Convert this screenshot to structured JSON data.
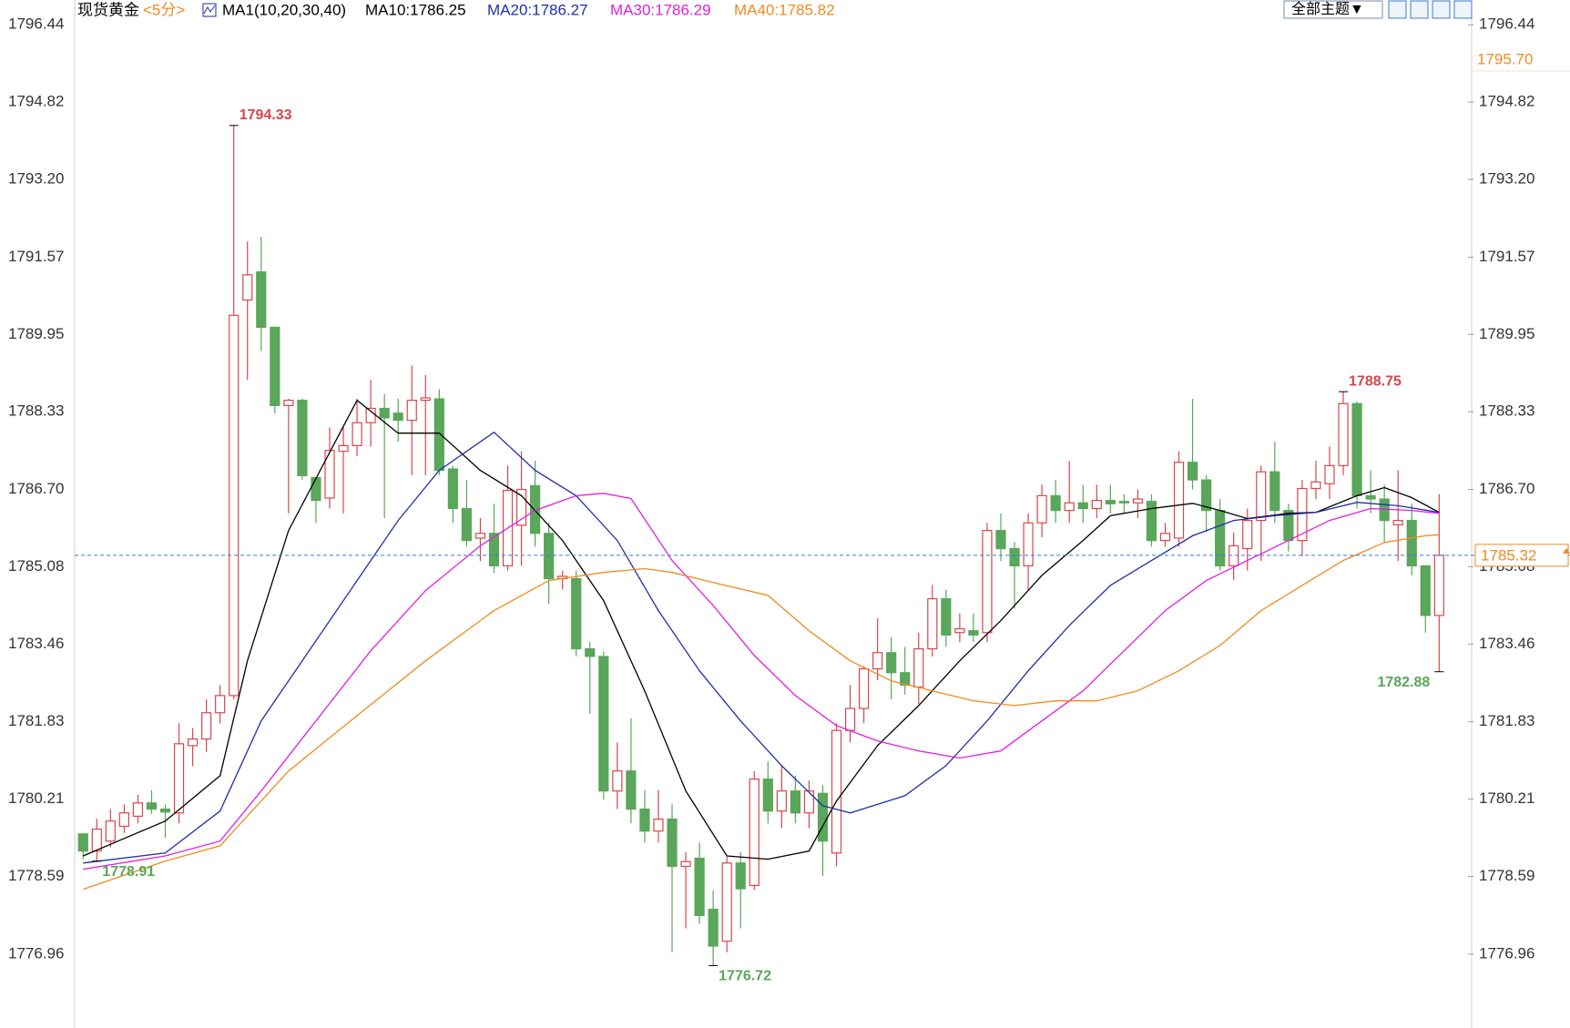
{
  "chart_data": {
    "type": "candlestick",
    "title": "现货黄金",
    "period": "<5分>",
    "indicator": "MA1(10,20,30,40)",
    "toolbar": {
      "theme_button": "全部主题▼"
    },
    "up_color": "#d9464b",
    "down_color": "#5aa65a",
    "open": [
      1779.48,
      1779.12,
      1779.33,
      1779.64,
      1779.85,
      1780.13,
      1780.0,
      1779.92,
      1781.33,
      1781.47,
      1782.02,
      1782.38,
      1790.67,
      1791.26,
      1790.1,
      1788.46,
      1788.57,
      1786.95,
      1786.52,
      1787.5,
      1787.62,
      1788.1,
      1788.4,
      1788.3,
      1788.15,
      1788.57,
      1788.6,
      1787.13,
      1786.3,
      1785.68,
      1785.78,
      1785.1,
      1785.95,
      1786.78,
      1785.78,
      1784.83,
      1784.83,
      1783.36,
      1783.2,
      1780.38,
      1780.8,
      1780.0,
      1779.54,
      1779.79,
      1778.8,
      1778.97,
      1777.9,
      1777.23,
      1778.87,
      1778.4,
      1780.63,
      1779.96,
      1780.38,
      1779.92,
      1780.33,
      1779.08,
      1781.65,
      1782.11,
      1782.94,
      1783.28,
      1782.86,
      1782.56,
      1783.36,
      1784.41,
      1783.7,
      1783.74,
      1783.7,
      1785.84,
      1785.46,
      1785.1,
      1786.0,
      1786.57,
      1786.26,
      1786.42,
      1786.3,
      1786.47,
      1786.45,
      1786.42,
      1786.45,
      1785.63,
      1785.68,
      1787.27,
      1786.9,
      1786.26,
      1785.1,
      1785.46,
      1786.05,
      1787.07,
      1786.26,
      1785.63,
      1786.72,
      1786.82,
      1787.2,
      1788.5,
      1786.57,
      1786.5,
      1785.96,
      1786.05,
      1785.1,
      1784.06
    ],
    "high": [
      1779.5,
      1779.8,
      1780.0,
      1780.1,
      1780.3,
      1780.4,
      1780.1,
      1781.8,
      1781.7,
      1782.3,
      1782.6,
      1794.33,
      1791.9,
      1792.0,
      1790.1,
      1788.6,
      1788.6,
      1786.9,
      1788.0,
      1788.0,
      1788.6,
      1789.0,
      1788.7,
      1788.6,
      1789.3,
      1789.1,
      1788.8,
      1787.2,
      1786.9,
      1786.1,
      1786.4,
      1787.2,
      1787.5,
      1787.3,
      1786.0,
      1785.0,
      1785.0,
      1783.5,
      1783.3,
      1781.4,
      1781.9,
      1780.4,
      1780.4,
      1780.1,
      1779.1,
      1779.3,
      1778.3,
      1779.0,
      1779.1,
      1780.8,
      1781.0,
      1780.9,
      1780.7,
      1780.6,
      1780.5,
      1781.8,
      1782.6,
      1783.0,
      1784.0,
      1783.6,
      1783.4,
      1783.7,
      1784.7,
      1784.6,
      1784.1,
      1784.1,
      1786.0,
      1786.2,
      1785.6,
      1786.2,
      1786.8,
      1786.9,
      1787.3,
      1786.8,
      1786.8,
      1786.8,
      1786.6,
      1786.7,
      1786.6,
      1786.0,
      1787.5,
      1788.6,
      1787.0,
      1786.5,
      1785.8,
      1786.3,
      1787.2,
      1787.7,
      1786.4,
      1786.9,
      1787.3,
      1787.6,
      1788.75,
      1788.55,
      1787.1,
      1786.8,
      1787.1,
      1786.4,
      1785.1,
      1786.6
    ],
    "low": [
      1778.95,
      1778.91,
      1779.2,
      1779.5,
      1779.7,
      1779.9,
      1779.4,
      1779.7,
      1780.9,
      1781.2,
      1781.8,
      1782.3,
      1789.0,
      1789.6,
      1788.3,
      1786.2,
      1786.9,
      1786.0,
      1786.3,
      1786.2,
      1787.4,
      1787.6,
      1786.1,
      1787.7,
      1787.0,
      1787.0,
      1787.0,
      1786.0,
      1785.5,
      1785.2,
      1784.95,
      1785.0,
      1785.1,
      1785.5,
      1784.3,
      1784.6,
      1783.2,
      1782.0,
      1780.2,
      1780.0,
      1779.7,
      1779.3,
      1779.3,
      1777.0,
      1777.5,
      1777.6,
      1776.72,
      1777.0,
      1777.5,
      1778.3,
      1779.7,
      1779.6,
      1779.7,
      1779.6,
      1778.6,
      1778.8,
      1781.4,
      1781.8,
      1782.7,
      1782.3,
      1782.4,
      1782.2,
      1783.2,
      1783.4,
      1783.5,
      1783.5,
      1783.5,
      1785.2,
      1784.2,
      1784.6,
      1785.7,
      1786.0,
      1786.0,
      1786.0,
      1786.1,
      1786.2,
      1786.2,
      1786.1,
      1785.5,
      1785.5,
      1785.5,
      1786.7,
      1785.8,
      1785.0,
      1784.8,
      1785.0,
      1785.2,
      1786.0,
      1785.4,
      1785.3,
      1786.5,
      1786.5,
      1787.0,
      1786.3,
      1786.2,
      1785.6,
      1785.2,
      1784.9,
      1783.7,
      1782.88
    ],
    "close": [
      1779.12,
      1779.58,
      1779.75,
      1779.92,
      1780.13,
      1780.0,
      1779.94,
      1781.37,
      1781.47,
      1782.02,
      1782.38,
      1790.35,
      1791.2,
      1790.1,
      1788.46,
      1788.57,
      1786.99,
      1786.47,
      1787.52,
      1787.62,
      1788.1,
      1788.4,
      1788.2,
      1788.15,
      1788.57,
      1788.62,
      1787.1,
      1786.3,
      1785.63,
      1785.78,
      1785.1,
      1786.68,
      1786.7,
      1785.78,
      1784.83,
      1784.88,
      1783.36,
      1783.2,
      1780.38,
      1780.8,
      1780.0,
      1779.54,
      1779.79,
      1778.8,
      1778.9,
      1777.77,
      1777.13,
      1778.87,
      1778.33,
      1780.63,
      1779.96,
      1780.38,
      1779.92,
      1780.38,
      1779.33,
      1781.65,
      1782.11,
      1782.94,
      1783.28,
      1782.86,
      1782.6,
      1783.36,
      1784.41,
      1783.65,
      1783.78,
      1783.65,
      1785.84,
      1785.46,
      1785.1,
      1786.0,
      1786.57,
      1786.26,
      1786.42,
      1786.3,
      1786.47,
      1786.4,
      1786.42,
      1786.5,
      1785.63,
      1785.78,
      1787.27,
      1786.9,
      1786.26,
      1785.1,
      1785.52,
      1786.05,
      1787.07,
      1786.26,
      1785.63,
      1786.72,
      1786.86,
      1787.2,
      1788.5,
      1786.57,
      1786.5,
      1786.05,
      1786.05,
      1785.1,
      1784.06,
      1785.32
    ],
    "lines": [
      {
        "name": "MA10:1786.25",
        "color": "#000000",
        "x": [
          0,
          6,
          10,
          12,
          15,
          20,
          23,
          26,
          29,
          32,
          35,
          38,
          41,
          44,
          47,
          50,
          53,
          55,
          58,
          61,
          64,
          67,
          70,
          73,
          75,
          78,
          81,
          83,
          85,
          88,
          90,
          93,
          95,
          97,
          99
        ],
        "values": [
          1779.02,
          1779.75,
          1780.7,
          1783.11,
          1785.84,
          1788.57,
          1787.88,
          1787.88,
          1787.1,
          1786.57,
          1785.63,
          1784.37,
          1782.48,
          1780.38,
          1779.02,
          1778.95,
          1779.12,
          1780.17,
          1781.33,
          1782.17,
          1783.11,
          1783.95,
          1784.9,
          1785.63,
          1786.15,
          1786.3,
          1786.41,
          1786.26,
          1786.09,
          1786.2,
          1786.22,
          1786.57,
          1786.74,
          1786.53,
          1786.22
        ]
      },
      {
        "name": "MA20:1786.27",
        "color": "#1f2fa8",
        "x": [
          0,
          6,
          10,
          13,
          16,
          20,
          23,
          26,
          30,
          33,
          36,
          39,
          42,
          45,
          48,
          51,
          54,
          56,
          60,
          63,
          66,
          69,
          72,
          75,
          78,
          81,
          84,
          87,
          90,
          93,
          96,
          99
        ],
        "values": [
          1778.87,
          1779.08,
          1779.96,
          1781.85,
          1783.11,
          1784.79,
          1786.05,
          1787.1,
          1787.9,
          1787.1,
          1786.57,
          1785.63,
          1784.16,
          1782.9,
          1781.85,
          1780.91,
          1780.07,
          1779.92,
          1780.28,
          1780.91,
          1781.85,
          1782.9,
          1783.85,
          1784.69,
          1785.21,
          1785.73,
          1786.05,
          1786.15,
          1786.22,
          1786.43,
          1786.36,
          1786.22
        ]
      },
      {
        "name": "MA30:1786.29",
        "color": "#e020e0",
        "x": [
          0,
          6,
          10,
          13,
          17,
          21,
          25,
          29,
          33,
          36,
          38,
          40,
          43,
          46,
          49,
          52,
          55,
          58,
          61,
          64,
          67,
          70,
          73,
          76,
          79,
          82,
          85,
          88,
          91,
          94,
          97,
          99
        ],
        "values": [
          1778.74,
          1779.02,
          1779.33,
          1780.38,
          1781.85,
          1783.32,
          1784.58,
          1785.52,
          1786.26,
          1786.57,
          1786.62,
          1786.51,
          1785.21,
          1784.27,
          1783.22,
          1782.38,
          1781.75,
          1781.43,
          1781.22,
          1781.07,
          1781.22,
          1781.85,
          1782.48,
          1783.32,
          1784.16,
          1784.79,
          1785.21,
          1785.63,
          1786.05,
          1786.3,
          1786.26,
          1786.2
        ]
      },
      {
        "name": "MA40:1785.82",
        "color": "#f28a1e",
        "x": [
          0,
          6,
          10,
          15,
          20,
          25,
          30,
          34,
          38,
          41,
          43,
          46,
          50,
          53,
          56,
          59,
          62,
          65,
          68,
          71,
          74,
          77,
          80,
          83,
          86,
          89,
          92,
          95,
          98,
          99
        ],
        "values": [
          1778.32,
          1778.91,
          1779.23,
          1780.8,
          1781.96,
          1783.11,
          1784.16,
          1784.79,
          1784.96,
          1785.04,
          1784.96,
          1784.75,
          1784.48,
          1783.74,
          1783.11,
          1782.69,
          1782.48,
          1782.27,
          1782.17,
          1782.27,
          1782.27,
          1782.48,
          1782.9,
          1783.43,
          1784.16,
          1784.69,
          1785.21,
          1785.59,
          1785.73,
          1785.75
        ]
      }
    ],
    "markers": [
      {
        "value": 1795.7,
        "label": "1795.70"
      }
    ],
    "ylim": [
      1775.45,
      1796.96
    ],
    "yticks": [
      1796.44,
      1794.82,
      {
        "value": 1793.2,
        "label": "1793.20"
      },
      1791.57,
      1789.95,
      1788.33,
      {
        "value": 1786.7,
        "label": "1786.70"
      },
      1785.08,
      1783.46,
      1781.83,
      1780.21,
      1778.59,
      1776.96
    ]
  }
}
